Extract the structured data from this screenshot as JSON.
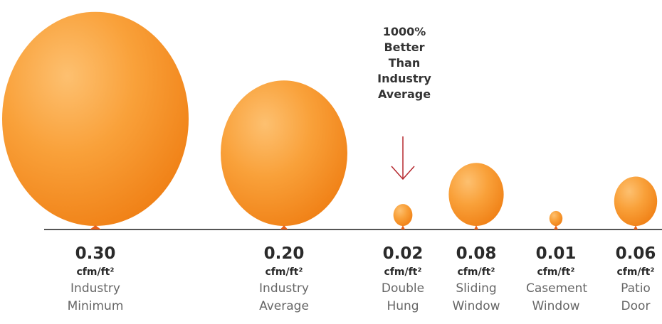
{
  "chart_data": {
    "type": "balloon",
    "annotation": "1000% Better Than Industry Average",
    "unit": "cfm/ft²",
    "categories": [
      "Industry Minimum",
      "Industry Average",
      "Double Hung",
      "Sliding Window",
      "Casement Window",
      "Patio Door"
    ],
    "values": [
      0.3,
      0.2,
      0.02,
      0.08,
      0.01,
      0.06
    ],
    "value_labels": [
      "0.30",
      "0.20",
      "0.02",
      "0.08",
      "0.01",
      "0.06"
    ],
    "color": "#f7941d"
  }
}
